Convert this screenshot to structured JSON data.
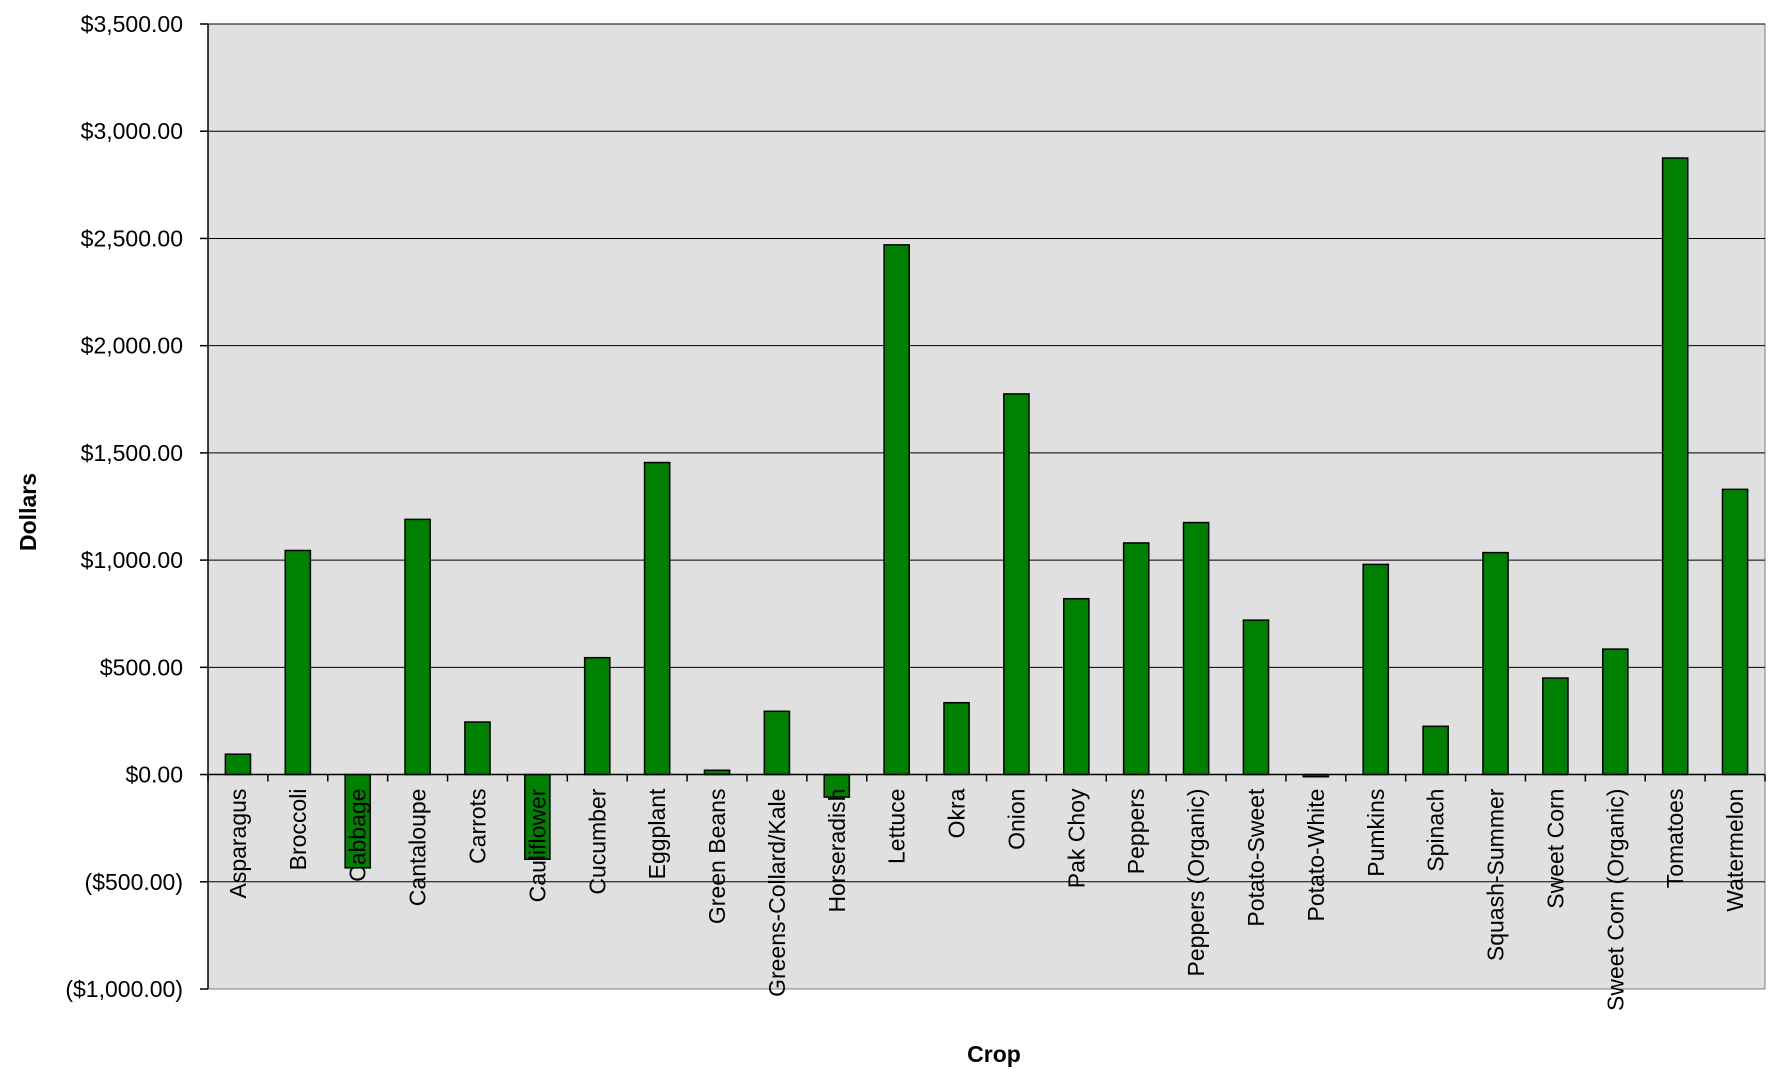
{
  "chart_data": {
    "type": "bar",
    "title": "",
    "xlabel": "Crop",
    "ylabel": "Dollars",
    "ylim": [
      -1000,
      3500
    ],
    "yticks": [
      -1000,
      -500,
      0,
      500,
      1000,
      1500,
      2000,
      2500,
      3000,
      3500
    ],
    "ytick_labels": [
      "($1,000.00)",
      "($500.00)",
      "$0.00",
      "$500.00",
      "$1,000.00",
      "$1,500.00",
      "$2,000.00",
      "$2,500.00",
      "$3,000.00",
      "$3,500.00"
    ],
    "grid": true,
    "legend": "none",
    "categories": [
      "Asparagus",
      "Broccoli",
      "Cabbage",
      "Cantaloupe",
      "Carrots",
      "Cauliflower",
      "Cucumber",
      "Eggplant",
      "Green Beans",
      "Greens-Collard/Kale",
      "Horseradish",
      "Lettuce",
      "Okra",
      "Onion",
      "Pak Choy",
      "Peppers",
      "Peppers (Organic)",
      "Potato-Sweet",
      "Potato-White",
      "Pumkins",
      "Spinach",
      "Squash-Summer",
      "Sweet Corn",
      "Sweet Corn (Organic)",
      "Tomatoes",
      "Watermelon"
    ],
    "values": [
      95,
      1045,
      -435,
      1190,
      245,
      -395,
      545,
      1455,
      20,
      295,
      -105,
      2470,
      335,
      1775,
      820,
      1080,
      1175,
      720,
      -10,
      980,
      225,
      1035,
      450,
      585,
      2875,
      1330
    ],
    "colors": {
      "bar": "#008000",
      "bar_edge": "#000000",
      "plot_bg": "#e0e0e0",
      "grid": "#000000"
    }
  }
}
